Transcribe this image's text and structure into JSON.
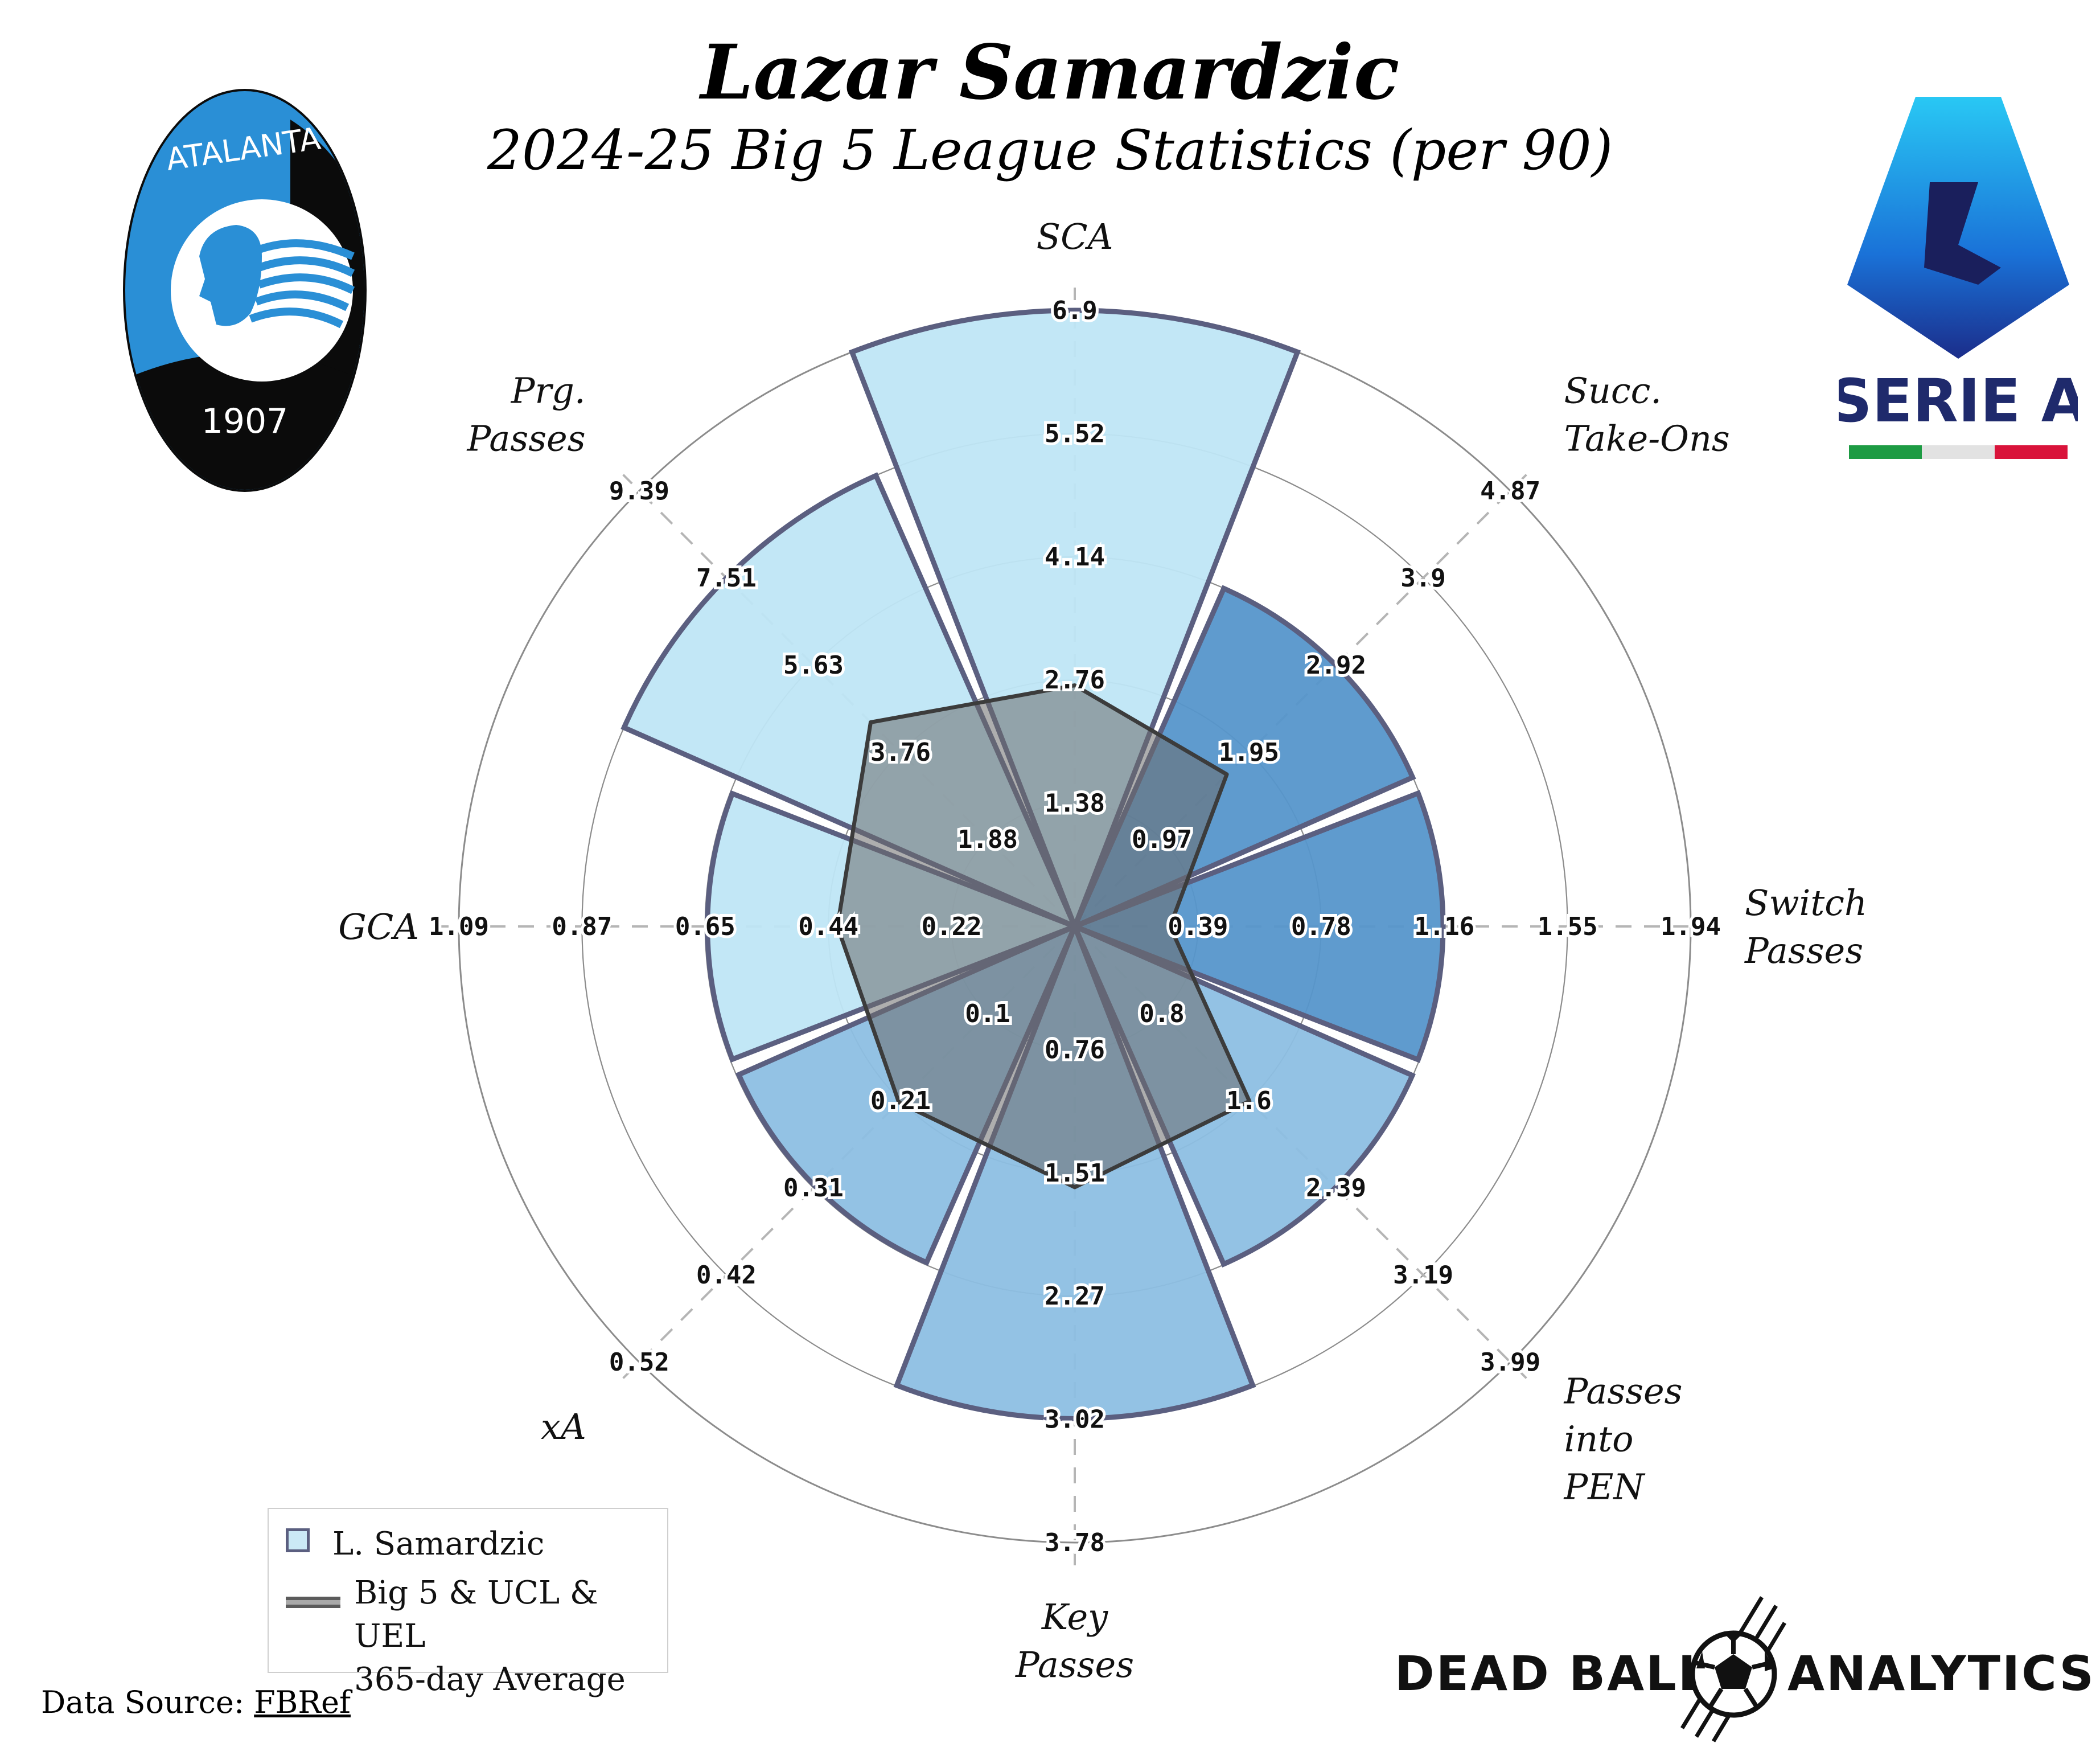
{
  "header": {
    "title": "Lazar Samardzic",
    "subtitle": "2024-25 Big 5 League Statistics (per 90)"
  },
  "logos": {
    "club_logo_text_top": "ATALANTA",
    "club_logo_text_bottom": "1907",
    "league_logo_text": "SERIE A",
    "brand_left": "DEAD BALL",
    "brand_right": "ANALYTICS"
  },
  "legend": {
    "player": "L. Samardzic",
    "average_line1": "Big 5 & UCL & UEL",
    "average_line2": "365-day Average"
  },
  "source": {
    "prefix": "Data Source: ",
    "link": "FBRef"
  },
  "colors": {
    "light_fill": "#bfe6f5",
    "mid_fill": "#8dbfe3",
    "dark_fill": "#5696cb",
    "edge": "#5b5f80",
    "average_fill": "#6c6c6c"
  },
  "chart_data": {
    "type": "radar",
    "metrics": [
      {
        "label": [
          "SCA"
        ],
        "ticks": [
          "1.38",
          "2.76",
          "4.14",
          "5.52",
          "6.9"
        ],
        "max": 6.9,
        "player": 6.9,
        "average": 2.7,
        "fill": "light"
      },
      {
        "label": [
          "Succ.",
          "Take-Ons"
        ],
        "ticks": [
          "0.97",
          "1.95",
          "2.92",
          "3.9",
          "4.87"
        ],
        "max": 4.87,
        "player": 2.92,
        "average": 1.7,
        "fill": "dark"
      },
      {
        "label": [
          "Switch",
          "Passes"
        ],
        "ticks": [
          "0.39",
          "0.78",
          "1.16",
          "1.55",
          "1.94"
        ],
        "max": 1.94,
        "player": 1.16,
        "average": 0.3,
        "fill": "dark"
      },
      {
        "label": [
          "Passes",
          "into",
          "PEN"
        ],
        "ticks": [
          "0.8",
          "1.6",
          "2.39",
          "3.19",
          "3.99"
        ],
        "max": 3.99,
        "player": 2.39,
        "average": 1.6,
        "fill": "mid"
      },
      {
        "label": [
          "Key",
          "Passes"
        ],
        "ticks": [
          "0.76",
          "1.51",
          "2.27",
          "3.02",
          "3.78"
        ],
        "max": 3.78,
        "player": 3.02,
        "average": 1.6,
        "fill": "mid"
      },
      {
        "label": [
          "xA"
        ],
        "ticks": [
          "0.1",
          "0.21",
          "0.31",
          "0.42",
          "0.52"
        ],
        "max": 0.52,
        "player": 0.31,
        "average": 0.21,
        "fill": "mid"
      },
      {
        "label": [
          "GCA"
        ],
        "ticks": [
          "0.22",
          "0.44",
          "0.65",
          "0.87",
          "1.09"
        ],
        "max": 1.09,
        "player": 0.65,
        "average": 0.42,
        "fill": "light"
      },
      {
        "label": [
          "Prg.",
          "Passes"
        ],
        "ticks": [
          "1.88",
          "3.76",
          "5.63",
          "7.51",
          "9.39"
        ],
        "max": 9.39,
        "player": 7.51,
        "average": 4.4,
        "fill": "light"
      }
    ]
  }
}
